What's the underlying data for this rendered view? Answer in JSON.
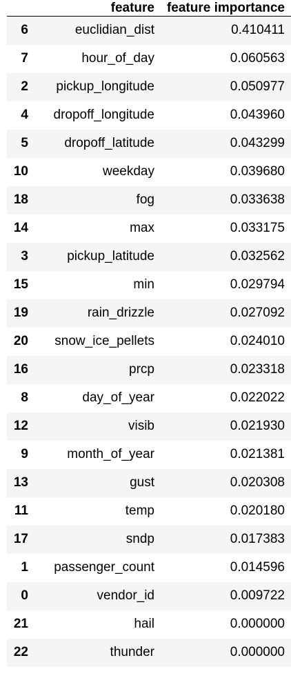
{
  "table": {
    "headers": {
      "index": "",
      "feature": "feature",
      "importance": "feature importance"
    },
    "rows": [
      {
        "index": "6",
        "feature": "euclidian_dist",
        "importance": "0.410411"
      },
      {
        "index": "7",
        "feature": "hour_of_day",
        "importance": "0.060563"
      },
      {
        "index": "2",
        "feature": "pickup_longitude",
        "importance": "0.050977"
      },
      {
        "index": "4",
        "feature": "dropoff_longitude",
        "importance": "0.043960"
      },
      {
        "index": "5",
        "feature": "dropoff_latitude",
        "importance": "0.043299"
      },
      {
        "index": "10",
        "feature": "weekday",
        "importance": "0.039680"
      },
      {
        "index": "18",
        "feature": "fog",
        "importance": "0.033638"
      },
      {
        "index": "14",
        "feature": "max",
        "importance": "0.033175"
      },
      {
        "index": "3",
        "feature": "pickup_latitude",
        "importance": "0.032562"
      },
      {
        "index": "15",
        "feature": "min",
        "importance": "0.029794"
      },
      {
        "index": "19",
        "feature": "rain_drizzle",
        "importance": "0.027092"
      },
      {
        "index": "20",
        "feature": "snow_ice_pellets",
        "importance": "0.024010"
      },
      {
        "index": "16",
        "feature": "prcp",
        "importance": "0.023318"
      },
      {
        "index": "8",
        "feature": "day_of_year",
        "importance": "0.022022"
      },
      {
        "index": "12",
        "feature": "visib",
        "importance": "0.021930"
      },
      {
        "index": "9",
        "feature": "month_of_year",
        "importance": "0.021381"
      },
      {
        "index": "13",
        "feature": "gust",
        "importance": "0.020308"
      },
      {
        "index": "11",
        "feature": "temp",
        "importance": "0.020180"
      },
      {
        "index": "17",
        "feature": "sndp",
        "importance": "0.017383"
      },
      {
        "index": "1",
        "feature": "passenger_count",
        "importance": "0.014596"
      },
      {
        "index": "0",
        "feature": "vendor_id",
        "importance": "0.009722"
      },
      {
        "index": "21",
        "feature": "hail",
        "importance": "0.000000"
      },
      {
        "index": "22",
        "feature": "thunder",
        "importance": "0.000000"
      }
    ]
  }
}
